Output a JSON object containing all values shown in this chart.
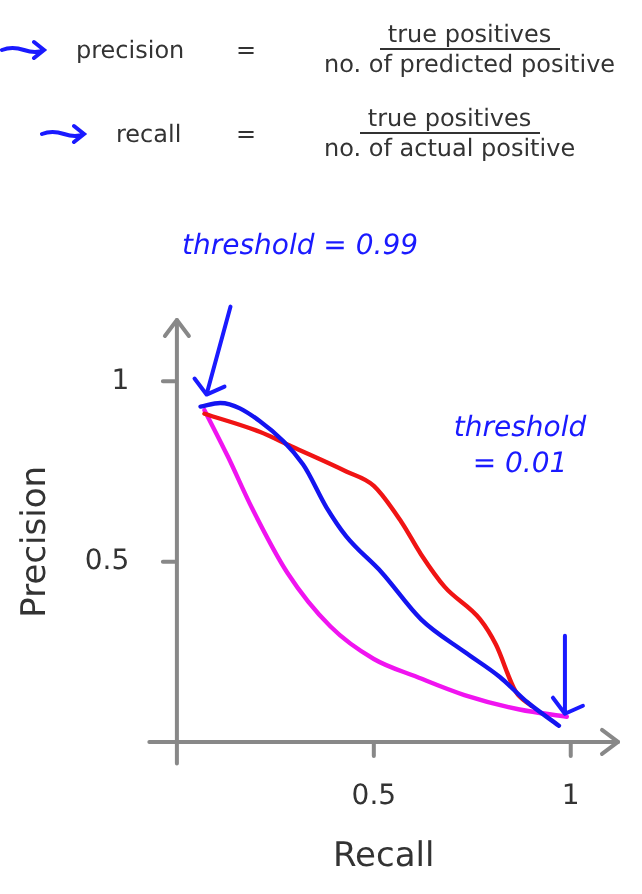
{
  "chart_data": {
    "type": "line",
    "xlabel": "Recall",
    "ylabel": "Precision",
    "annotations": [
      "precision",
      "=",
      "true positives",
      "no. of predicted positive",
      "recall",
      "=",
      "true positives",
      "no. of actual positive",
      "threshold = 0.99",
      "threshold = 0.01"
    ],
    "xlim": [
      -0.07,
      1.12
    ],
    "ylim": [
      -0.06,
      1.17
    ],
    "xticks": [
      0.5,
      1
    ],
    "yticks": [
      0.5,
      1
    ],
    "grid": false,
    "legend": false,
    "marker": "none",
    "series": [
      {
        "color": "#1414f0",
        "x": [
          0.06,
          0.11,
          0.21,
          0.32,
          0.38,
          0.43,
          0.52,
          0.62,
          0.73,
          0.82,
          0.89,
          0.97
        ],
        "values": [
          0.93,
          0.94,
          0.89,
          0.77,
          0.65,
          0.57,
          0.47,
          0.34,
          0.25,
          0.18,
          0.11,
          0.045
        ]
      },
      {
        "color": "#f01414",
        "x": [
          0.07,
          0.21,
          0.29,
          0.43,
          0.5,
          0.57,
          0.62,
          0.68,
          0.77,
          0.81,
          0.86,
          0.9
        ],
        "values": [
          0.91,
          0.86,
          0.82,
          0.75,
          0.71,
          0.61,
          0.52,
          0.43,
          0.34,
          0.27,
          0.14,
          0.1
        ]
      },
      {
        "color": "#f014f0",
        "x": [
          0.07,
          0.13,
          0.19,
          0.28,
          0.39,
          0.5,
          0.61,
          0.73,
          0.87,
          0.99
        ],
        "values": [
          0.92,
          0.79,
          0.65,
          0.47,
          0.32,
          0.23,
          0.18,
          0.13,
          0.09,
          0.07
        ]
      }
    ]
  }
}
